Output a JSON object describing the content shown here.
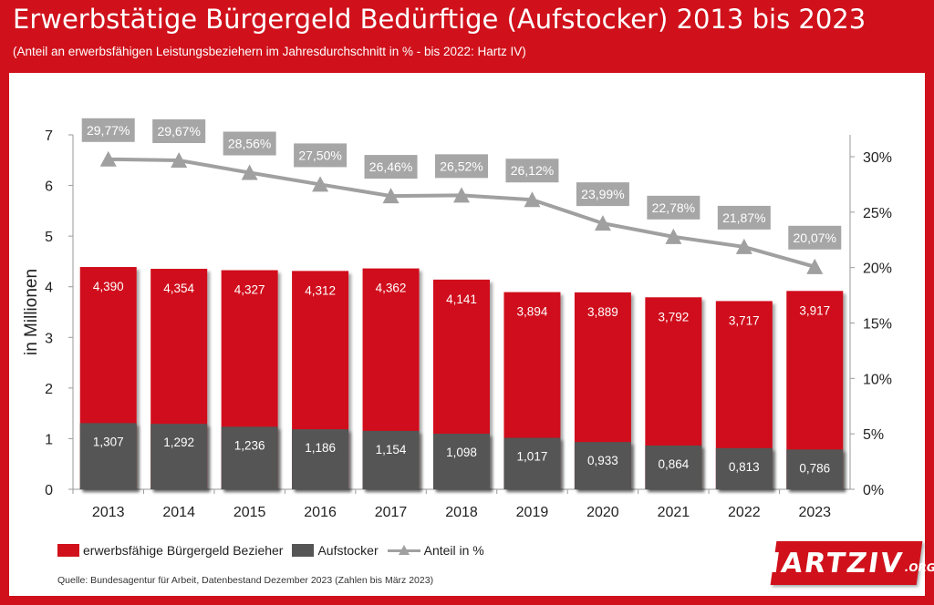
{
  "title": "Erwerbstätige Bürgergeld Bedürftige (Aufstocker) 2013 bis 2023",
  "subtitle": "(Anteil an erwerbsfähigen Leistungsbeziehern im Jahresdurchschnitt in % - bis 2022: Hartz IV)",
  "source": "Quelle: Bundesagentur für Arbeit, Datenbestand Dezember 2023 (Zahlen bis März 2023)",
  "logo": {
    "main": "HARTZIV",
    "org": ".ORG"
  },
  "colors": {
    "red": "#d0111b",
    "grey": "#555555",
    "line": "#a0a0a0"
  },
  "chart_data": {
    "type": "bar",
    "title": "Erwerbstätige Bürgergeld Bedürftige (Aufstocker) 2013 bis 2023",
    "categories": [
      "2013",
      "2014",
      "2015",
      "2016",
      "2017",
      "2018",
      "2019",
      "2020",
      "2021",
      "2022",
      "2023"
    ],
    "ylabel": "in Millionen",
    "ylim": [
      0,
      7
    ],
    "yticks": [
      "0",
      "1",
      "2",
      "3",
      "4",
      "5",
      "6",
      "7"
    ],
    "y2lim": [
      0,
      32
    ],
    "y2ticks": [
      "0%",
      "5%",
      "10%",
      "15%",
      "20%",
      "25%",
      "30%"
    ],
    "series": [
      {
        "name": "erwerbsfähige Bürgergeld Bezieher",
        "type": "bar",
        "axis": "left",
        "values": [
          4.39,
          4.354,
          4.327,
          4.312,
          4.362,
          4.141,
          3.894,
          3.889,
          3.792,
          3.717,
          3.917
        ],
        "labels": [
          "4,390",
          "4,354",
          "4,327",
          "4,312",
          "4,362",
          "4,141",
          "3,894",
          "3,889",
          "3,792",
          "3,717",
          "3,917"
        ]
      },
      {
        "name": "Aufstocker",
        "type": "bar",
        "axis": "left",
        "values": [
          1.307,
          1.292,
          1.236,
          1.186,
          1.154,
          1.098,
          1.017,
          0.933,
          0.864,
          0.813,
          0.786
        ],
        "labels": [
          "1,307",
          "1,292",
          "1,236",
          "1,186",
          "1,154",
          "1,098",
          "1,017",
          "0,933",
          "0,864",
          "0,813",
          "0,786"
        ]
      },
      {
        "name": "Anteil in %",
        "type": "line",
        "axis": "right",
        "values": [
          29.77,
          29.67,
          28.56,
          27.5,
          26.46,
          26.52,
          26.12,
          23.99,
          22.78,
          21.87,
          20.07
        ],
        "labels": [
          "29,77%",
          "29,67%",
          "28,56%",
          "27,50%",
          "26,46%",
          "26,52%",
          "26,12%",
          "23,99%",
          "22,78%",
          "21,87%",
          "20,07%"
        ]
      }
    ],
    "grid": false,
    "legend": "bottom-left"
  }
}
